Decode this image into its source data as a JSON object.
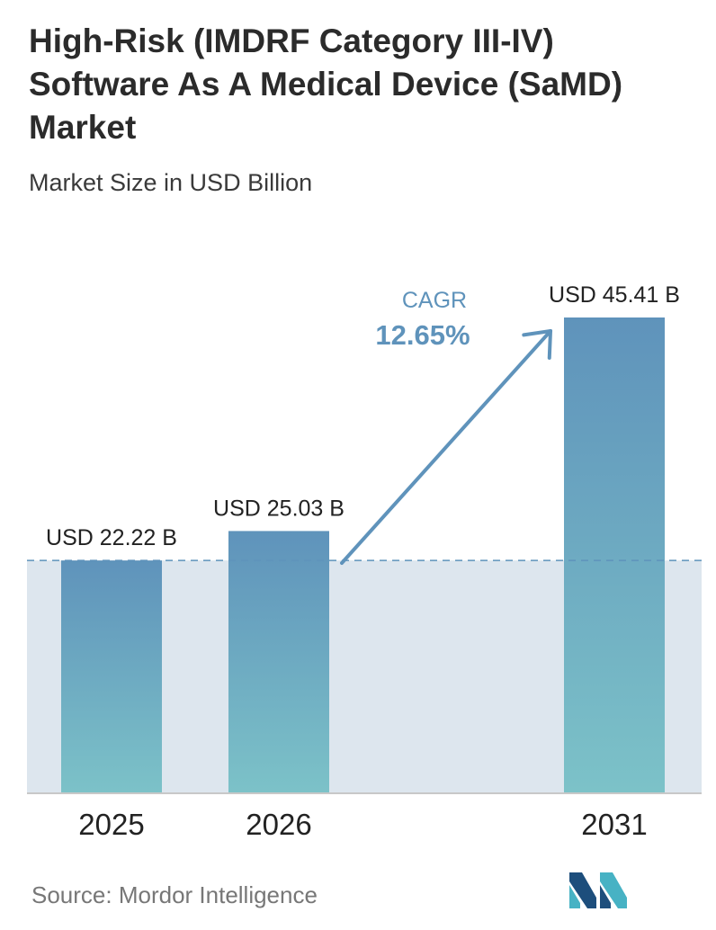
{
  "header": {
    "title": "High-Risk (IMDRF Category III-IV) Software As A Medical Device (SaMD) Market",
    "subtitle": "Market Size in USD Billion"
  },
  "footer": {
    "source": "Source:  Mordor Intelligence"
  },
  "colors": {
    "bar_top": "#5f93bb",
    "bar_bottom": "#7cc2c8",
    "band": "#dde6ee",
    "arrow": "#5f93bb",
    "logo_dark": "#1d4e7c",
    "logo_light": "#47b2c4"
  },
  "chart_data": {
    "type": "bar",
    "categories": [
      "2025",
      "2026",
      "2031"
    ],
    "values": [
      22.22,
      25.03,
      45.41
    ],
    "value_labels": [
      "USD 22.22 B",
      "USD 25.03 B",
      "USD 45.41 B"
    ],
    "title": "High-Risk (IMDRF Category III-IV) Software As A Medical Device (SaMD) Market",
    "subtitle": "Market Size in USD Billion",
    "ylim": [
      0,
      45.41
    ],
    "reference_line": 22.22,
    "annotation": {
      "label": "CAGR",
      "value": "12.65%"
    }
  }
}
